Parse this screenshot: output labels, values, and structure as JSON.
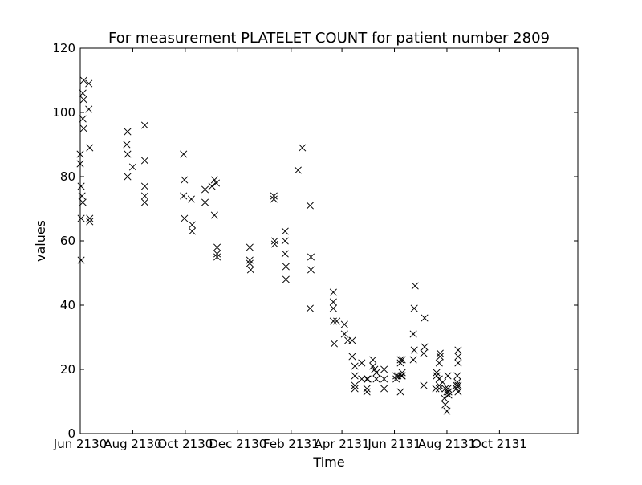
{
  "chart_data": {
    "type": "scatter",
    "title": "For measurement PLATELET COUNT for patient number 2809",
    "xlabel": "Time",
    "ylabel": "values",
    "marker": "x",
    "marker_color": "#000000",
    "grid": false,
    "legend": "none",
    "ylim": [
      0,
      120
    ],
    "xlim": [
      "2130-06-01",
      "2131-12-31"
    ],
    "y_ticks": [
      0,
      20,
      40,
      60,
      80,
      100,
      120
    ],
    "x_ticks": [
      {
        "date": "2130-06-01",
        "label": "Jun 2130"
      },
      {
        "date": "2130-08-01",
        "label": "Aug 2130"
      },
      {
        "date": "2130-10-01",
        "label": "Oct 2130"
      },
      {
        "date": "2130-12-01",
        "label": "Dec 2130"
      },
      {
        "date": "2131-02-01",
        "label": "Feb 2131"
      },
      {
        "date": "2131-04-01",
        "label": "Apr 2131"
      },
      {
        "date": "2131-06-01",
        "label": "Jun 2131"
      },
      {
        "date": "2131-08-01",
        "label": "Aug 2131"
      },
      {
        "date": "2131-10-01",
        "label": "Oct 2131"
      }
    ],
    "points": [
      [
        "2130-06-01",
        87
      ],
      [
        "2130-06-01",
        84
      ],
      [
        "2130-06-02",
        77
      ],
      [
        "2130-06-02",
        67
      ],
      [
        "2130-06-02",
        54
      ],
      [
        "2130-06-03",
        74
      ],
      [
        "2130-06-04",
        72
      ],
      [
        "2130-06-04",
        106
      ],
      [
        "2130-06-04",
        98
      ],
      [
        "2130-06-05",
        104
      ],
      [
        "2130-06-05",
        95
      ],
      [
        "2130-06-05",
        110
      ],
      [
        "2130-06-11",
        109
      ],
      [
        "2130-06-11",
        101
      ],
      [
        "2130-06-12",
        89
      ],
      [
        "2130-06-12",
        67
      ],
      [
        "2130-06-12",
        66
      ],
      [
        "2130-07-26",
        94
      ],
      [
        "2130-07-25",
        90
      ],
      [
        "2130-07-26",
        87
      ],
      [
        "2130-07-26",
        80
      ],
      [
        "2130-08-01",
        83
      ],
      [
        "2130-08-15",
        96
      ],
      [
        "2130-08-15",
        85
      ],
      [
        "2130-08-15",
        77
      ],
      [
        "2130-08-15",
        74
      ],
      [
        "2130-08-15",
        72
      ],
      [
        "2130-09-29",
        87
      ],
      [
        "2130-09-30",
        79
      ],
      [
        "2130-09-29",
        74
      ],
      [
        "2130-09-30",
        67
      ],
      [
        "2130-10-08",
        73
      ],
      [
        "2130-10-09",
        65
      ],
      [
        "2130-10-09",
        63
      ],
      [
        "2130-10-24",
        76
      ],
      [
        "2130-10-24",
        72
      ],
      [
        "2130-11-01",
        77
      ],
      [
        "2130-11-04",
        79
      ],
      [
        "2130-11-06",
        78
      ],
      [
        "2130-11-04",
        68
      ],
      [
        "2130-11-07",
        58
      ],
      [
        "2130-11-07",
        56
      ],
      [
        "2130-11-07",
        55
      ],
      [
        "2130-12-15",
        58
      ],
      [
        "2130-12-15",
        54
      ],
      [
        "2130-12-15",
        53
      ],
      [
        "2130-12-16",
        51
      ],
      [
        "2131-01-12",
        74
      ],
      [
        "2131-01-12",
        73
      ],
      [
        "2131-01-13",
        60
      ],
      [
        "2131-01-13",
        59
      ],
      [
        "2131-01-25",
        63
      ],
      [
        "2131-01-25",
        60
      ],
      [
        "2131-01-25",
        56
      ],
      [
        "2131-01-26",
        52
      ],
      [
        "2131-01-26",
        48
      ],
      [
        "2131-02-09",
        82
      ],
      [
        "2131-02-14",
        89
      ],
      [
        "2131-02-23",
        71
      ],
      [
        "2131-02-24",
        55
      ],
      [
        "2131-02-24",
        51
      ],
      [
        "2131-02-23",
        39
      ],
      [
        "2131-03-22",
        44
      ],
      [
        "2131-03-22",
        41
      ],
      [
        "2131-03-22",
        39
      ],
      [
        "2131-03-22",
        35
      ],
      [
        "2131-03-23",
        28
      ],
      [
        "2131-03-26",
        35
      ],
      [
        "2131-04-04",
        34
      ],
      [
        "2131-04-04",
        31
      ],
      [
        "2131-04-08",
        29
      ],
      [
        "2131-04-13",
        29
      ],
      [
        "2131-04-13",
        24
      ],
      [
        "2131-04-16",
        21
      ],
      [
        "2131-04-16",
        18
      ],
      [
        "2131-04-16",
        15
      ],
      [
        "2131-04-16",
        14
      ],
      [
        "2131-04-24",
        22
      ],
      [
        "2131-04-24",
        17
      ],
      [
        "2131-04-30",
        17
      ],
      [
        "2131-04-30",
        14
      ],
      [
        "2131-04-30",
        13
      ],
      [
        "2131-05-01",
        17
      ],
      [
        "2131-05-07",
        23
      ],
      [
        "2131-05-07",
        21
      ],
      [
        "2131-05-09",
        20
      ],
      [
        "2131-05-11",
        19
      ],
      [
        "2131-05-11",
        17
      ],
      [
        "2131-05-20",
        20
      ],
      [
        "2131-05-20",
        17
      ],
      [
        "2131-05-20",
        14
      ],
      [
        "2131-06-03",
        18
      ],
      [
        "2131-06-03",
        17
      ],
      [
        "2131-06-05",
        18
      ],
      [
        "2131-06-08",
        23
      ],
      [
        "2131-06-08",
        22
      ],
      [
        "2131-06-08",
        13
      ],
      [
        "2131-06-09",
        18
      ],
      [
        "2131-06-10",
        19
      ],
      [
        "2131-06-10",
        23
      ],
      [
        "2131-06-10",
        18
      ],
      [
        "2131-06-25",
        46
      ],
      [
        "2131-06-24",
        39
      ],
      [
        "2131-06-23",
        31
      ],
      [
        "2131-06-24",
        26
      ],
      [
        "2131-06-23",
        23
      ],
      [
        "2131-07-06",
        36
      ],
      [
        "2131-07-06",
        27
      ],
      [
        "2131-07-05",
        25
      ],
      [
        "2131-07-05",
        15
      ],
      [
        "2131-07-20",
        19
      ],
      [
        "2131-07-20",
        18
      ],
      [
        "2131-07-19",
        14
      ],
      [
        "2131-07-24",
        25
      ],
      [
        "2131-07-24",
        24
      ],
      [
        "2131-07-23",
        22
      ],
      [
        "2131-07-23",
        17
      ],
      [
        "2131-07-23",
        15
      ],
      [
        "2131-07-23",
        14
      ],
      [
        "2131-07-27",
        16
      ],
      [
        "2131-07-29",
        11
      ],
      [
        "2131-07-30",
        14
      ],
      [
        "2131-07-30",
        9
      ],
      [
        "2131-08-01",
        7
      ],
      [
        "2131-08-01",
        13
      ],
      [
        "2131-08-02",
        14
      ],
      [
        "2131-08-02",
        18
      ],
      [
        "2131-08-03",
        12
      ],
      [
        "2131-08-03",
        13
      ],
      [
        "2131-08-14",
        26
      ],
      [
        "2131-08-14",
        24
      ],
      [
        "2131-08-14",
        22
      ],
      [
        "2131-08-13",
        18
      ],
      [
        "2131-08-13",
        16
      ],
      [
        "2131-08-14",
        15
      ],
      [
        "2131-08-12",
        15
      ],
      [
        "2131-08-12",
        14
      ],
      [
        "2131-08-14",
        13
      ]
    ]
  }
}
